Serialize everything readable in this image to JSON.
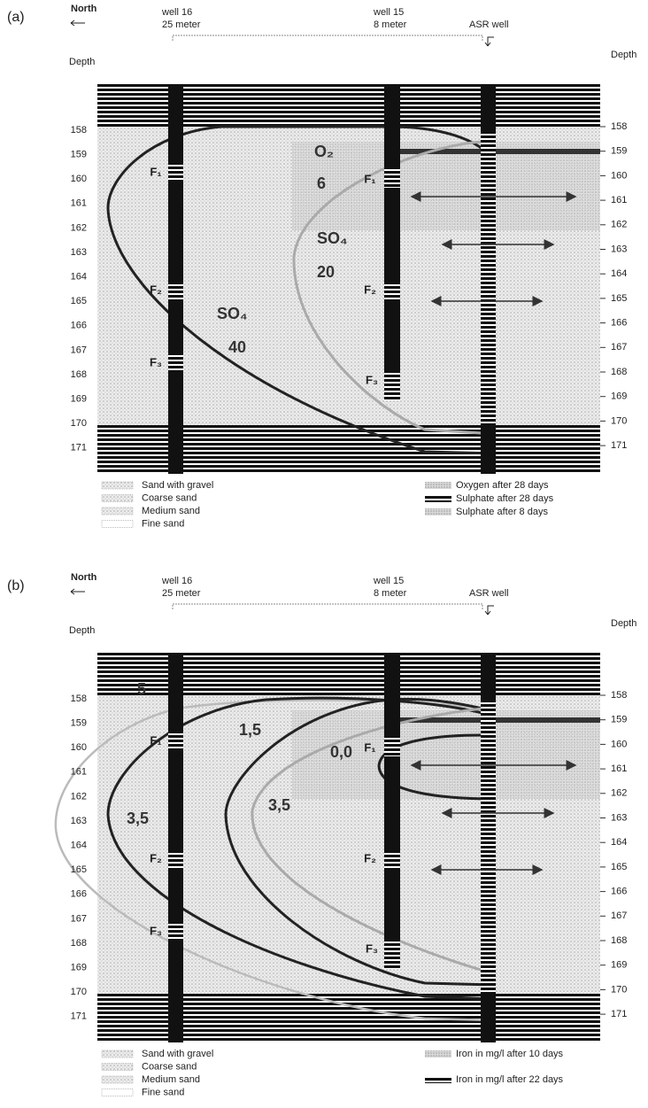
{
  "panels": [
    {
      "label": "(a)",
      "north": "North",
      "depth_left": "Depth",
      "depth_right": "Depth",
      "wells": [
        {
          "name": "well 16",
          "distance": "25 meter"
        },
        {
          "name": "well 15",
          "distance": "8 meter"
        },
        {
          "name": "ASR well"
        }
      ],
      "depths_left": [
        158,
        159,
        160,
        161,
        162,
        163,
        164,
        165,
        166,
        167,
        168,
        169,
        170,
        171
      ],
      "depths_right": [
        158,
        159,
        160,
        161,
        162,
        163,
        164,
        165,
        166,
        167,
        168,
        169,
        170,
        171
      ],
      "filters_well16": [
        "F₁",
        "F₂",
        "F₃"
      ],
      "filters_well15": [
        "F₁",
        "F₂",
        "F₃"
      ],
      "contour_labels": [
        "O₂",
        "6",
        "SO₄",
        "20",
        "SO₄",
        "40"
      ],
      "legend_left": [
        "Sand with gravel",
        "Coarse sand",
        "Medium sand",
        "Fine sand"
      ],
      "legend_right": [
        "Oxygen after 28 days",
        "Sulphate after 28 days",
        "Sulphate after 8 days"
      ]
    },
    {
      "label": "(b)",
      "north": "North",
      "depth_left": "Depth",
      "depth_right": "Depth",
      "wells": [
        {
          "name": "well 16",
          "distance": "25 meter"
        },
        {
          "name": "well 15",
          "distance": "8 meter"
        },
        {
          "name": "ASR well"
        }
      ],
      "depths_left": [
        158,
        159,
        160,
        161,
        162,
        163,
        164,
        165,
        166,
        167,
        168,
        169,
        170,
        171
      ],
      "depths_right": [
        158,
        159,
        160,
        161,
        162,
        163,
        164,
        165,
        166,
        167,
        168,
        169,
        170,
        171
      ],
      "filters_well16": [
        "F₁",
        "F₂",
        "F₃"
      ],
      "filters_well15": [
        "F₁",
        "F₂",
        "F₃"
      ],
      "contour_labels": [
        "5",
        "1,5",
        "0,0",
        "3,5",
        "3,5"
      ],
      "legend_left": [
        "Sand with gravel",
        "Coarse sand",
        "Medium sand",
        "Fine sand"
      ],
      "legend_right": [
        "Iron in mg/l after 10 days",
        "Iron in mg/l after 22 days"
      ]
    }
  ]
}
